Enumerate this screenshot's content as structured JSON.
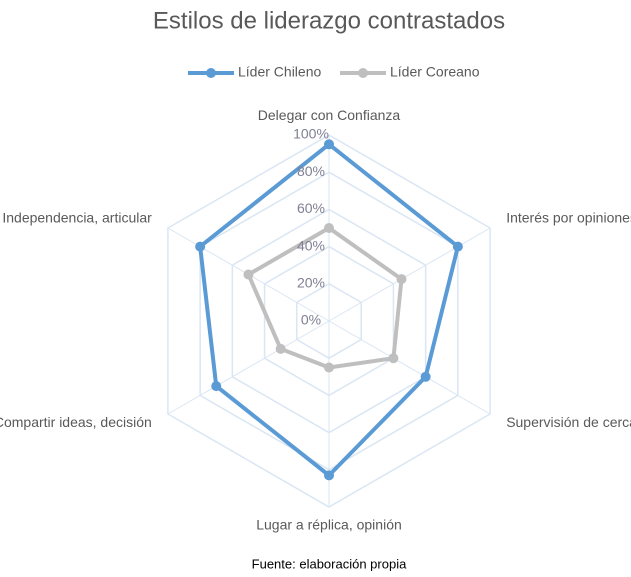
{
  "chart_data": {
    "type": "radar",
    "title": "Estilos de liderazgo contrastados",
    "categories": [
      "Delegar con Confianza",
      "Interés por opiniones",
      "Supervisión de cerca",
      "Lugar a réplica, opinión",
      "Compartir ideas, decisión",
      "Independencia, articular"
    ],
    "series": [
      {
        "name": "Líder Chileno",
        "color": "#5b9bd5",
        "values": [
          95,
          80,
          60,
          83,
          70,
          80
        ]
      },
      {
        "name": "Líder Coreano",
        "color": "#bfbfbf",
        "values": [
          50,
          45,
          40,
          25,
          30,
          50
        ]
      }
    ],
    "ylim": [
      0,
      100
    ],
    "yticks": [
      {
        "value": 0,
        "label": "0%"
      },
      {
        "value": 20,
        "label": "20%"
      },
      {
        "value": 40,
        "label": "40%"
      },
      {
        "value": 60,
        "label": "60%"
      },
      {
        "value": 80,
        "label": "80%"
      },
      {
        "value": 100,
        "label": "100%"
      }
    ],
    "grid": true,
    "legend": "top",
    "source": "Fuente: elaboración propia"
  }
}
